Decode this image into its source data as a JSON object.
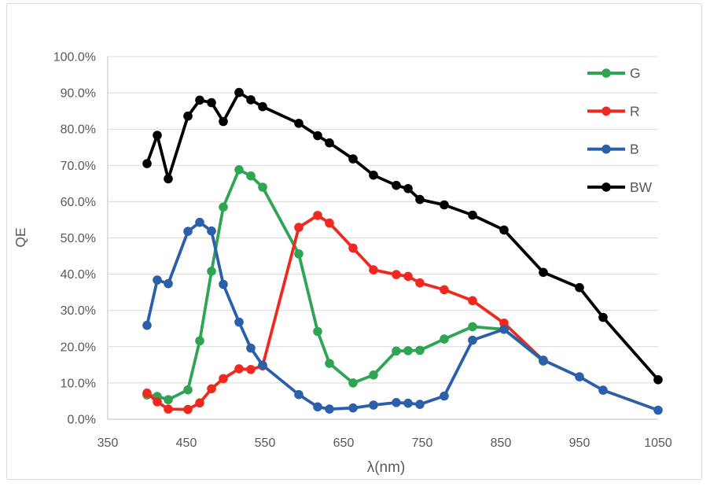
{
  "figure": {
    "background": "#FFFFFF",
    "frame_border_color": "#D9D9D9",
    "gridline_color": "#D9D9D9",
    "axis_line_color": "#BFBFBF",
    "text_color": "#595959"
  },
  "chart_data": {
    "type": "line",
    "title": "",
    "xlabel": "λ(nm)",
    "ylabel": "QE",
    "xlim": [
      350,
      1050
    ],
    "ylim": [
      0,
      100
    ],
    "grid": "horizontal-only",
    "legend_position": "top-right",
    "x_ticks": [
      "350",
      "450",
      "550",
      "650",
      "750",
      "850",
      "950",
      "1050"
    ],
    "y_ticks": [
      "0.0%",
      "10.0%",
      "20.0%",
      "30.0%",
      "40.0%",
      "50.0%",
      "60.0%",
      "70.0%",
      "80.0%",
      "90.0%",
      "100.0%"
    ],
    "y_tick_values": [
      0,
      10,
      20,
      30,
      40,
      50,
      60,
      70,
      80,
      90,
      100
    ],
    "series": [
      {
        "name": "G",
        "color": "#2FA452",
        "x": [
          400,
          413,
          427,
          452,
          467,
          482,
          497,
          517,
          532,
          547,
          593,
          617,
          632,
          662,
          688,
          717,
          732,
          747,
          778,
          814,
          854,
          904
        ],
        "values": [
          6.7,
          6.3,
          5.4,
          8.1,
          21.6,
          40.8,
          58.5,
          68.8,
          67.1,
          64.0,
          45.6,
          24.2,
          15.4,
          10.0,
          12.2,
          18.8,
          18.9,
          19.0,
          22.1,
          25.5,
          24.8,
          16.0
        ]
      },
      {
        "name": "R",
        "color": "#EF2920",
        "x": [
          400,
          413,
          427,
          452,
          467,
          482,
          497,
          517,
          532,
          547,
          593,
          617,
          632,
          662,
          688,
          717,
          732,
          747,
          778,
          814,
          854,
          904
        ],
        "values": [
          7.2,
          4.8,
          2.8,
          2.7,
          4.5,
          8.4,
          11.2,
          13.9,
          13.7,
          14.7,
          52.9,
          56.2,
          54.1,
          47.2,
          41.2,
          39.9,
          39.4,
          37.6,
          35.7,
          32.7,
          26.5,
          16.2
        ]
      },
      {
        "name": "B",
        "color": "#2C5FA9",
        "x": [
          400,
          413,
          427,
          452,
          467,
          482,
          497,
          517,
          532,
          547,
          593,
          617,
          632,
          662,
          688,
          717,
          732,
          747,
          778,
          814,
          854,
          904,
          950,
          980,
          1050
        ],
        "values": [
          25.9,
          38.4,
          37.4,
          51.8,
          54.3,
          51.9,
          37.2,
          26.8,
          19.6,
          14.9,
          6.8,
          3.4,
          2.8,
          3.1,
          3.9,
          4.6,
          4.4,
          4.1,
          6.4,
          21.8,
          24.8,
          16.3,
          11.7,
          8.0,
          2.5
        ]
      },
      {
        "name": "BW",
        "color": "#000000",
        "x": [
          400,
          413,
          427,
          452,
          467,
          482,
          497,
          517,
          532,
          547,
          593,
          617,
          632,
          662,
          688,
          717,
          732,
          747,
          778,
          814,
          854,
          904,
          950,
          980,
          1050
        ],
        "values": [
          70.5,
          78.3,
          66.3,
          83.6,
          88.0,
          87.3,
          82.1,
          90.1,
          88.1,
          86.2,
          81.6,
          78.2,
          76.2,
          71.8,
          67.3,
          64.5,
          63.6,
          60.6,
          59.1,
          56.3,
          52.2,
          40.5,
          36.3,
          28.1,
          10.9
        ]
      }
    ]
  }
}
